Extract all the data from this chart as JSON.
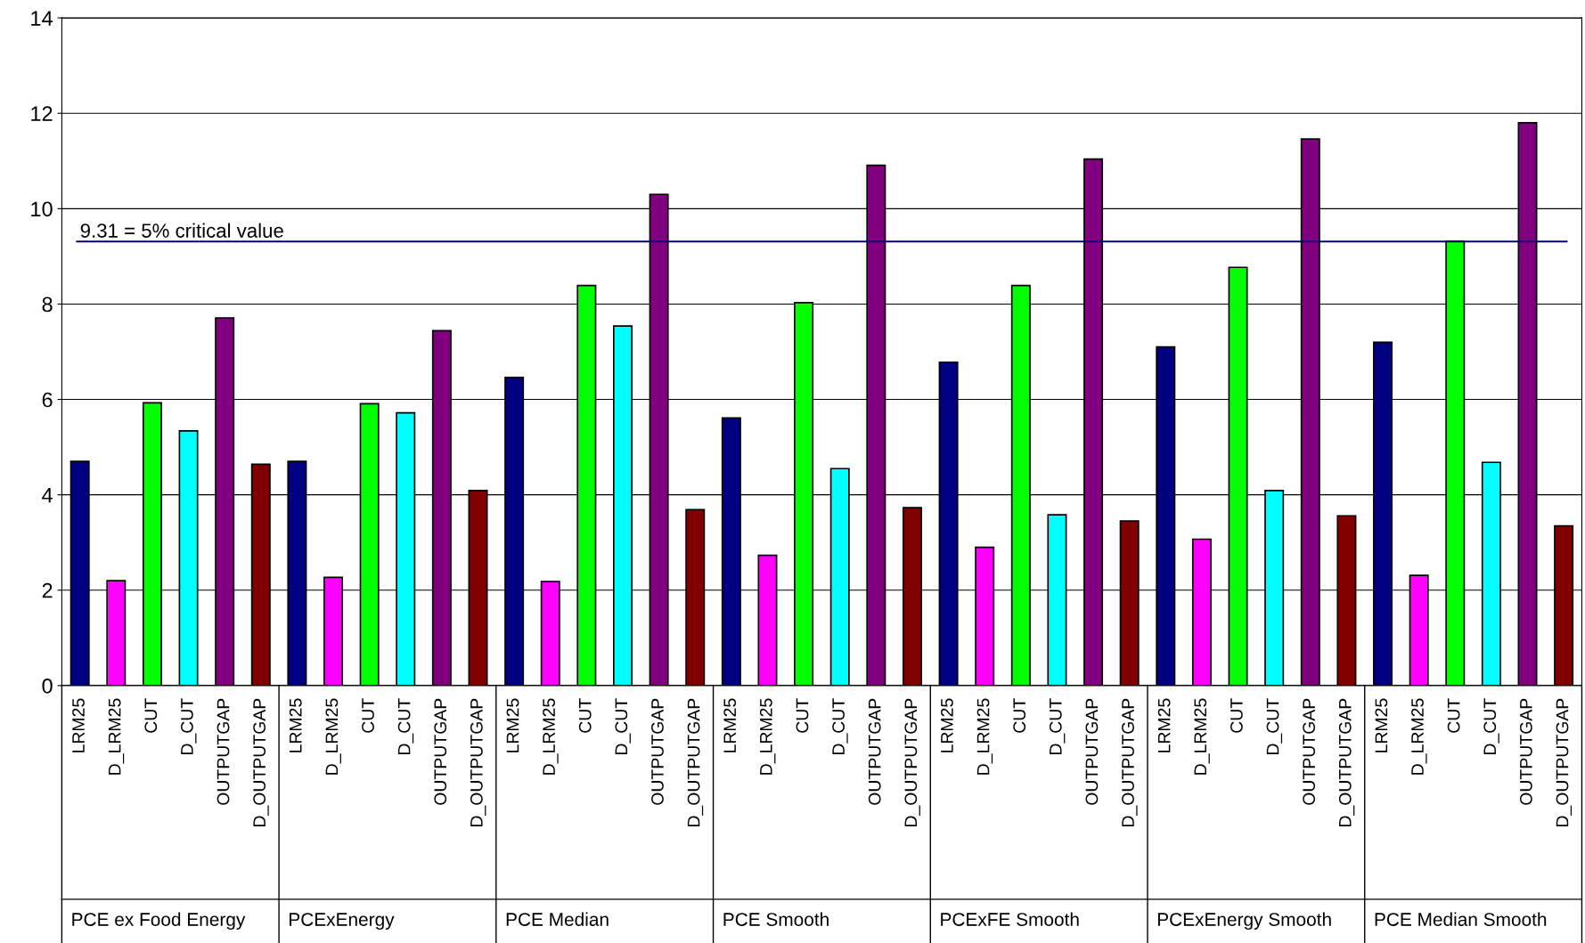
{
  "chart_data": {
    "type": "bar",
    "categories": [
      "LRM25",
      "D_LRM25",
      "CUT",
      "D_CUT",
      "OUTPUTGAP",
      "D_OUTPUTGAP",
      "LRM25",
      "D_LRM25",
      "CUT",
      "D_CUT",
      "OUTPUTGAP",
      "D_OUTPUTGAP",
      "LRM25",
      "D_LRM25",
      "CUT",
      "D_CUT",
      "OUTPUTGAP",
      "D_OUTPUTGAP",
      "LRM25",
      "D_LRM25",
      "CUT",
      "D_CUT",
      "OUTPUTGAP",
      "D_OUTPUTGAP",
      "LRM25",
      "D_LRM25",
      "CUT",
      "D_CUT",
      "OUTPUTGAP",
      "D_OUTPUTGAP",
      "LRM25",
      "D_LRM25",
      "CUT",
      "D_CUT",
      "OUTPUTGAP",
      "D_OUTPUTGAP",
      "LRM25",
      "D_LRM25",
      "CUT",
      "D_CUT",
      "OUTPUTGAP",
      "D_OUTPUTGAP"
    ],
    "values": [
      4.7,
      2.2,
      5.93,
      5.34,
      7.71,
      4.64,
      4.7,
      2.27,
      5.91,
      5.72,
      7.44,
      4.09,
      6.46,
      2.18,
      8.39,
      7.54,
      10.3,
      3.69,
      5.61,
      2.73,
      8.03,
      4.55,
      10.91,
      3.73,
      6.78,
      2.9,
      8.39,
      3.58,
      11.04,
      3.45,
      7.1,
      3.07,
      8.77,
      4.09,
      11.46,
      3.56,
      7.2,
      2.31,
      9.32,
      4.68,
      11.8,
      3.35
    ],
    "colors": [
      "#000080",
      "#ff00ff",
      "#00ff00",
      "#00ffff",
      "#800080",
      "#800000",
      "#000080",
      "#ff00ff",
      "#00ff00",
      "#00ffff",
      "#800080",
      "#800000",
      "#000080",
      "#ff00ff",
      "#00ff00",
      "#00ffff",
      "#800080",
      "#800000",
      "#000080",
      "#ff00ff",
      "#00ff00",
      "#00ffff",
      "#800080",
      "#800000",
      "#000080",
      "#ff00ff",
      "#00ff00",
      "#00ffff",
      "#800080",
      "#800000",
      "#000080",
      "#ff00ff",
      "#00ff00",
      "#00ffff",
      "#800080",
      "#800000",
      "#000080",
      "#ff00ff",
      "#00ff00",
      "#00ffff",
      "#800080",
      "#800000"
    ],
    "annotations": [
      "PCE ex Food Energy",
      "PCExEnergy",
      "PCE Median",
      "PCE Smooth",
      "PCExFE Smooth",
      "PCExEnergy Smooth",
      "PCE Median Smooth"
    ],
    "ylim": [
      0,
      14
    ],
    "yticks": [
      0,
      2,
      4,
      6,
      8,
      10,
      12,
      14
    ],
    "grid": "y",
    "legend": false,
    "ref_lines": [
      {
        "axis": "y",
        "value": 9.31,
        "label": "9.31 = 5% critical value",
        "color": "#000080"
      }
    ]
  }
}
